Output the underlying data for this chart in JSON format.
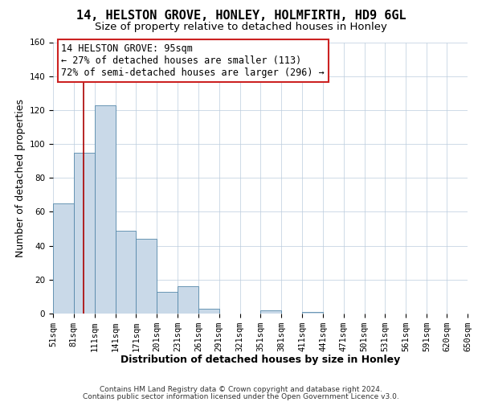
{
  "title": "14, HELSTON GROVE, HONLEY, HOLMFIRTH, HD9 6GL",
  "subtitle": "Size of property relative to detached houses in Honley",
  "xlabel": "Distribution of detached houses by size in Honley",
  "ylabel": "Number of detached properties",
  "bin_edges": [
    51,
    81,
    111,
    141,
    171,
    201,
    231,
    261,
    291,
    321,
    351,
    381,
    411,
    441,
    471,
    501,
    531,
    561,
    591,
    620,
    650
  ],
  "bin_counts": [
    65,
    95,
    123,
    49,
    44,
    13,
    16,
    3,
    0,
    0,
    2,
    0,
    1,
    0,
    0,
    0,
    0,
    0,
    0,
    0
  ],
  "bar_color": "#c9d9e8",
  "bar_edge_color": "#5588aa",
  "vline_x": 95,
  "vline_color": "#aa0000",
  "ylim": [
    0,
    160
  ],
  "yticks": [
    0,
    20,
    40,
    60,
    80,
    100,
    120,
    140,
    160
  ],
  "annotation_box_text": "14 HELSTON GROVE: 95sqm\n← 27% of detached houses are smaller (113)\n72% of semi-detached houses are larger (296) →",
  "footnote1": "Contains HM Land Registry data © Crown copyright and database right 2024.",
  "footnote2": "Contains public sector information licensed under the Open Government Licence v3.0.",
  "background_color": "#ffffff",
  "ax_background_color": "#ffffff",
  "grid_color": "#bbccdd",
  "title_fontsize": 11,
  "subtitle_fontsize": 9.5,
  "label_fontsize": 9,
  "tick_label_fontsize": 7.5,
  "annotation_fontsize": 8.5
}
